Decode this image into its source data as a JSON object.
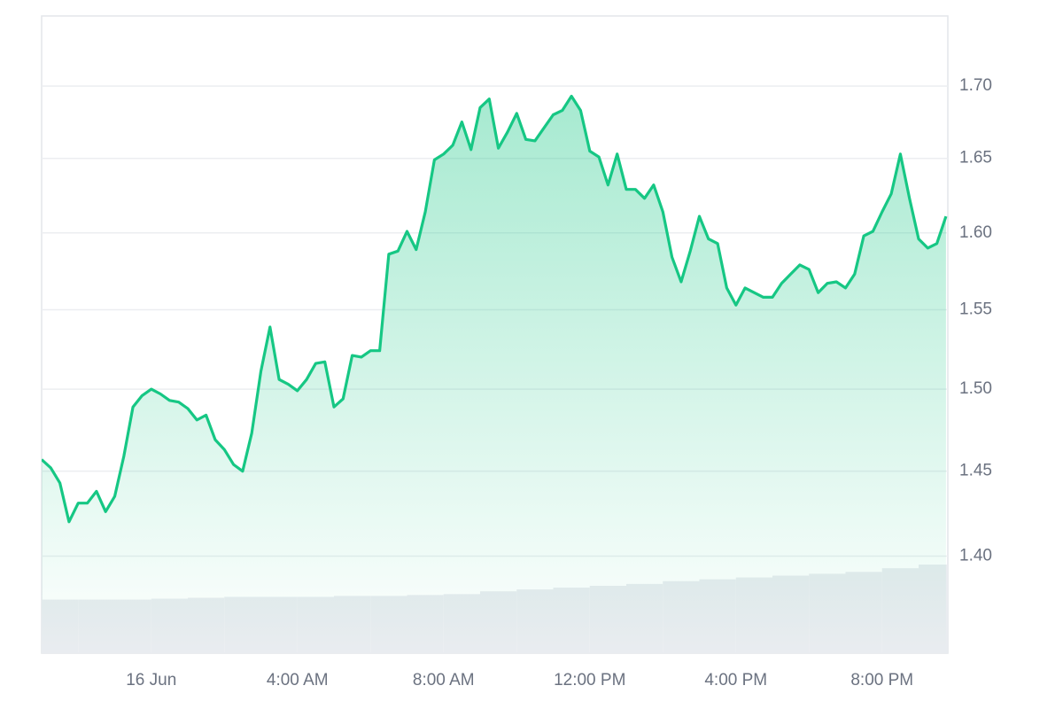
{
  "chart_data": {
    "type": "line",
    "color": "#16c784",
    "log_y": true,
    "grid": true,
    "x": [
      -3,
      -2.75,
      -2.5,
      -2.25,
      -2,
      -1.75,
      -1.5,
      -1.25,
      -1,
      -0.75,
      -0.5,
      -0.25,
      0,
      0.25,
      0.5,
      0.75,
      1,
      1.25,
      1.5,
      1.75,
      2,
      2.25,
      2.5,
      2.75,
      3,
      3.25,
      3.5,
      3.75,
      4,
      4.25,
      4.5,
      4.75,
      5,
      5.25,
      5.5,
      5.75,
      6,
      6.25,
      6.5,
      6.75,
      7,
      7.25,
      7.5,
      7.75,
      8,
      8.25,
      8.5,
      8.75,
      9,
      9.25,
      9.5,
      9.75,
      10,
      10.25,
      10.5,
      10.75,
      11,
      11.25,
      11.5,
      11.75,
      12,
      12.25,
      12.5,
      12.75,
      13,
      13.25,
      13.5,
      13.75,
      14,
      14.25,
      14.5,
      14.75,
      15,
      15.25,
      15.5,
      15.75,
      16,
      16.25,
      16.5,
      16.75,
      17,
      17.25,
      17.5,
      17.75,
      18,
      18.25,
      18.5,
      18.75,
      19,
      19.25,
      19.5,
      19.75,
      20,
      20.25,
      20.5,
      20.75,
      21,
      21.25,
      21.5,
      21.75
    ],
    "values": [
      1.457,
      1.452,
      1.443,
      1.42,
      1.431,
      1.431,
      1.438,
      1.426,
      1.435,
      1.459,
      1.489,
      1.496,
      1.5,
      1.497,
      1.493,
      1.492,
      1.488,
      1.481,
      1.484,
      1.469,
      1.463,
      1.454,
      1.45,
      1.473,
      1.511,
      1.539,
      1.506,
      1.503,
      1.499,
      1.506,
      1.516,
      1.517,
      1.489,
      1.494,
      1.521,
      1.52,
      1.524,
      1.524,
      1.586,
      1.588,
      1.601,
      1.589,
      1.614,
      1.649,
      1.653,
      1.659,
      1.675,
      1.656,
      1.685,
      1.691,
      1.657,
      1.668,
      1.681,
      1.663,
      1.662,
      1.671,
      1.68,
      1.683,
      1.693,
      1.683,
      1.655,
      1.651,
      1.632,
      1.653,
      1.629,
      1.629,
      1.623,
      1.632,
      1.614,
      1.584,
      1.568,
      1.588,
      1.611,
      1.596,
      1.593,
      1.564,
      1.553,
      1.564,
      1.561,
      1.558,
      1.558,
      1.567,
      1.573,
      1.579,
      1.576,
      1.561,
      1.567,
      1.568,
      1.564,
      1.573,
      1.598,
      1.601,
      1.614,
      1.626,
      1.653,
      1.623,
      1.596,
      1.59,
      1.593,
      1.611
    ],
    "volume": {
      "color": "#e9ecf0",
      "x": [
        -3,
        -2,
        -1,
        0,
        1,
        2,
        3,
        4,
        5,
        6,
        7,
        8,
        9,
        10,
        11,
        12,
        13,
        14,
        15,
        16,
        17,
        18,
        19,
        20,
        21
      ],
      "values": [
        58,
        58,
        58,
        59,
        60,
        61,
        61,
        61,
        62,
        62,
        63,
        64,
        67,
        69,
        71,
        73,
        75,
        78,
        80,
        82,
        84,
        86,
        88,
        92,
        96
      ]
    },
    "xlim": [
      -3,
      21.8
    ],
    "xticks": [
      {
        "value": 0,
        "label": "16 Jun"
      },
      {
        "value": 4,
        "label": "4:00 AM"
      },
      {
        "value": 8,
        "label": "8:00 AM"
      },
      {
        "value": 12,
        "label": "12:00 PM"
      },
      {
        "value": 16,
        "label": "4:00 PM"
      },
      {
        "value": 20,
        "label": "8:00 PM"
      }
    ],
    "ylim": [
      1.345,
      1.75
    ],
    "yticks": [
      {
        "value": 1.4,
        "label": "1.40"
      },
      {
        "value": 1.45,
        "label": "1.45"
      },
      {
        "value": 1.5,
        "label": "1.50"
      },
      {
        "value": 1.55,
        "label": "1.55"
      },
      {
        "value": 1.6,
        "label": "1.60"
      },
      {
        "value": 1.65,
        "label": "1.65"
      },
      {
        "value": 1.7,
        "label": "1.70"
      }
    ]
  }
}
